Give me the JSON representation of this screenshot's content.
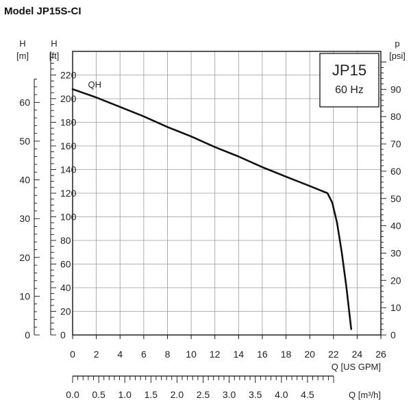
{
  "page": {
    "title": "Model JP15S-CI"
  },
  "chart_data": {
    "type": "line",
    "title": "Model JP15S-CI",
    "box_label": {
      "line1": "JP15",
      "line2": "60 Hz"
    },
    "x_axis": {
      "label": "Q [US GPM]",
      "min": 0,
      "max": 26,
      "ticks": [
        0,
        2,
        4,
        6,
        8,
        10,
        12,
        14,
        16,
        18,
        20,
        22,
        24,
        26
      ]
    },
    "x_axis_secondary": {
      "label": "Q [m³/h]",
      "ticks": [
        "0.0",
        "0.5",
        "1.0",
        "1.5",
        "2.0",
        "2.5",
        "3.0",
        "3.5",
        "4.0",
        "4.5"
      ],
      "values": [
        0,
        0.5,
        1,
        1.5,
        2,
        2.5,
        3,
        3.5,
        4,
        4.5
      ],
      "minor_step": 0.1
    },
    "y_axis_ft": {
      "label_top": "H",
      "label_unit": "[ft]",
      "min": 0,
      "max": 240,
      "ticks": [
        0,
        20,
        40,
        60,
        80,
        100,
        120,
        140,
        160,
        180,
        200,
        220
      ],
      "minor_step": 5
    },
    "y_axis_m": {
      "label_top": "H",
      "label_unit": "[m]",
      "ticks": [
        0,
        10,
        20,
        30,
        40,
        50,
        60
      ],
      "minor_step": 2
    },
    "y_axis_psi": {
      "label_top": "p",
      "label_unit": "[psi]",
      "ticks": [
        0,
        10,
        20,
        30,
        40,
        50,
        60,
        70,
        80,
        90
      ],
      "minor_step": 2
    },
    "grid": true,
    "series": [
      {
        "name": "QH",
        "x": [
          0,
          2,
          4,
          6,
          8,
          10,
          12,
          14,
          16,
          18,
          20,
          21,
          21.5,
          21.9,
          22.3,
          22.7,
          23.1,
          23.5
        ],
        "y": [
          208,
          201,
          193,
          185,
          176,
          168,
          159,
          151,
          142,
          134,
          126,
          122,
          120,
          112,
          95,
          70,
          40,
          5
        ]
      }
    ]
  }
}
